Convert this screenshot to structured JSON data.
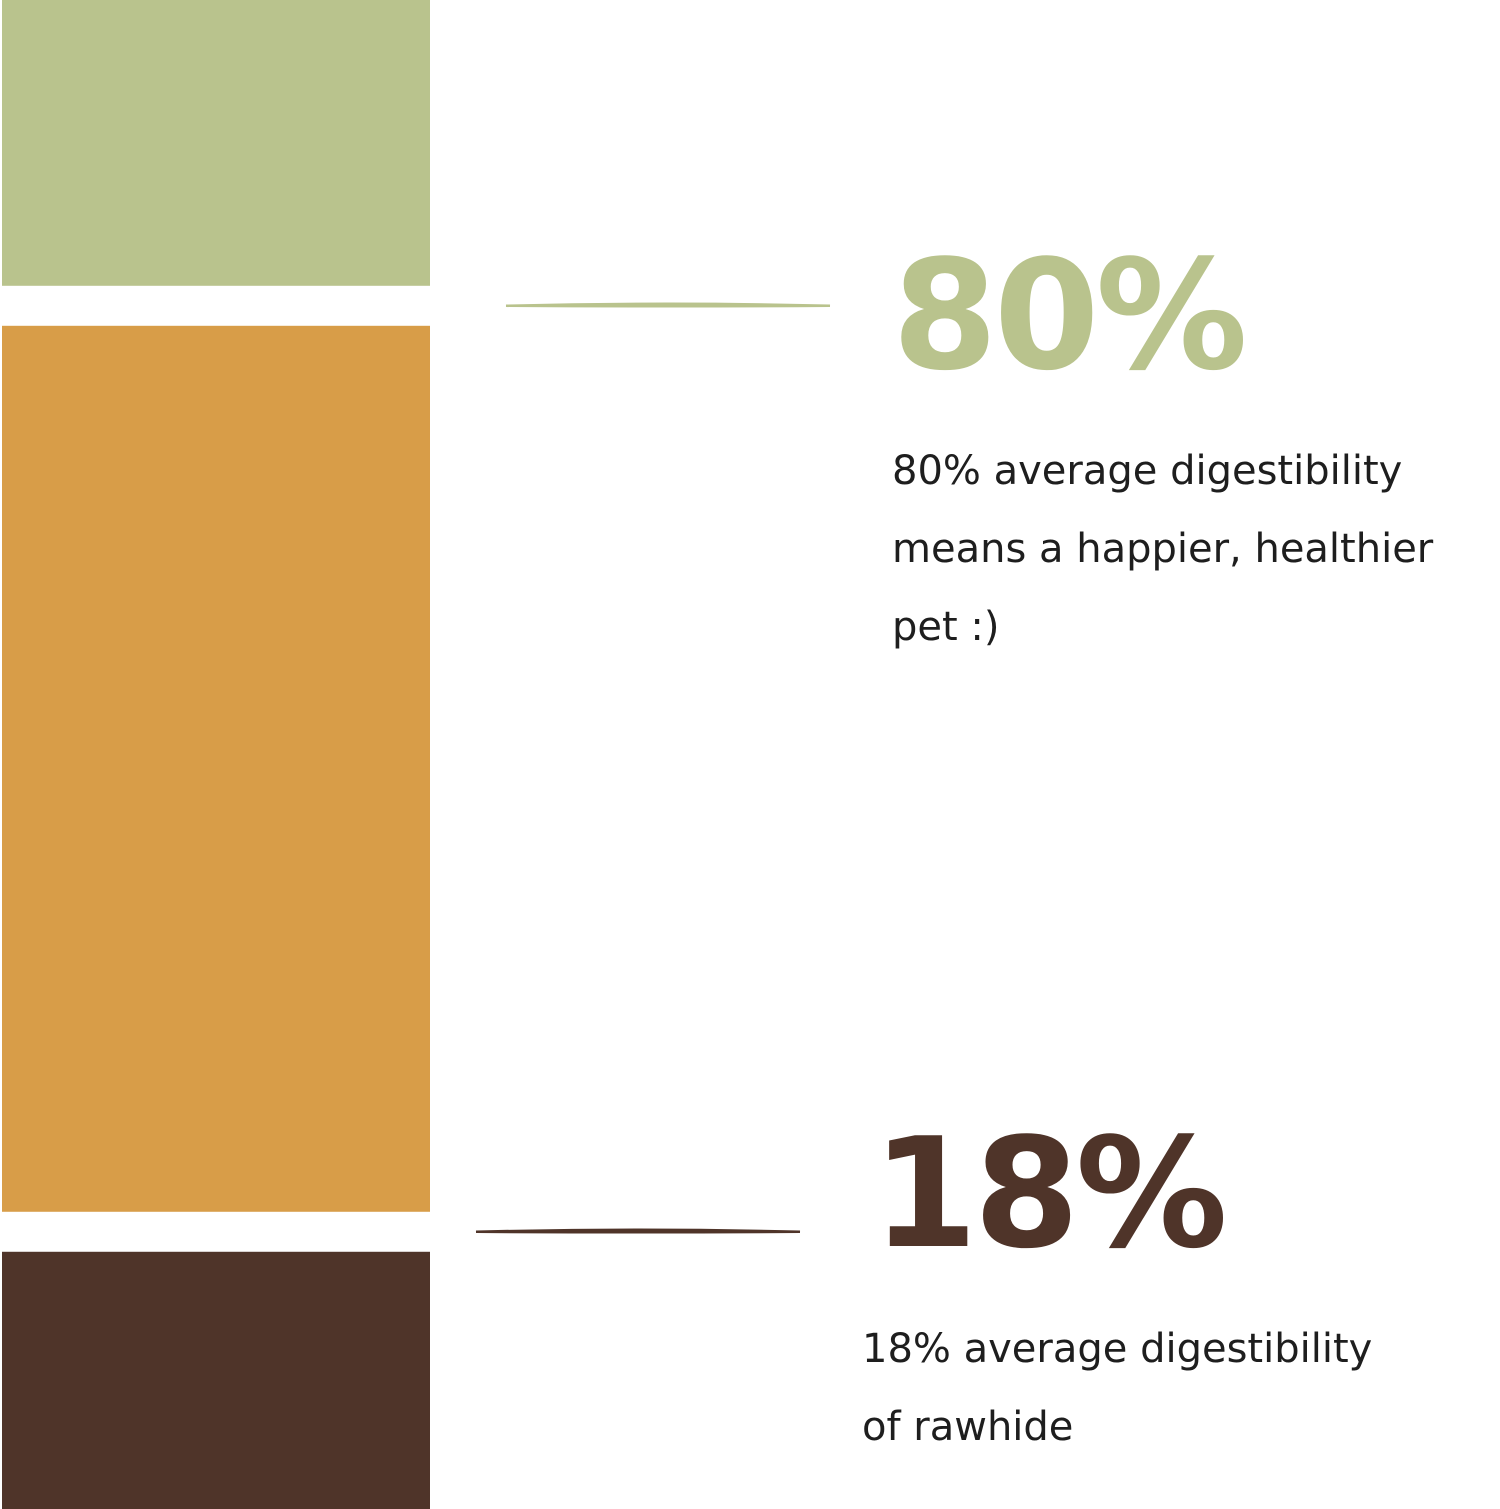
{
  "chart_data": {
    "type": "bar",
    "orientation": "stacked-vertical",
    "segments": [
      {
        "value": 20,
        "color": "#b9c38d"
      },
      {
        "value": 62,
        "color": "#d89d48"
      },
      {
        "value": 18,
        "color": "#4f3429"
      }
    ],
    "annotations": [
      {
        "value": 80,
        "value_label": "80%",
        "color": "#b9c38d",
        "description_lines": [
          "80% average digestibility",
          "means a happier, healthier",
          "pet :)"
        ]
      },
      {
        "value": 18,
        "value_label": "18%",
        "color": "#4f3429",
        "description_lines": [
          "18% average digestibility",
          "of rawhide"
        ]
      }
    ]
  }
}
